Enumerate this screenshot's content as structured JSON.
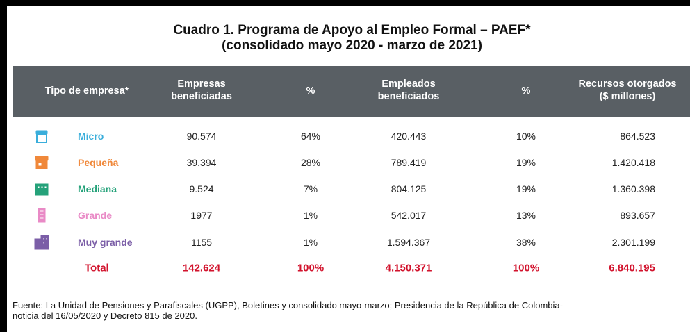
{
  "title": [
    "Cuadro 1. Programa de Apoyo al Empleo Formal – PAEF*",
    "(consolidado mayo 2020 - marzo de 2021)"
  ],
  "table": {
    "header": [
      [
        "Tipo de empresa*"
      ],
      [
        "Empresas",
        "beneficiadas"
      ],
      [
        "%"
      ],
      [
        "Empleados",
        "beneficiados"
      ],
      [
        "%"
      ],
      [
        "Recursos otorgados",
        "($ millones)"
      ]
    ],
    "rows": [
      {
        "color": "#3aaedb",
        "cells": [
          "Micro",
          "90.574",
          "64%",
          "420.443",
          "10%",
          "864.523"
        ]
      },
      {
        "color": "#f0883a",
        "cells": [
          "Pequeña",
          "39.394",
          "28%",
          "789.419",
          "19%",
          "1.420.418"
        ]
      },
      {
        "color": "#25a27a",
        "cells": [
          "Mediana",
          "9.524",
          "7%",
          "804.125",
          "19%",
          "1.360.398"
        ]
      },
      {
        "color": "#e98ac6",
        "cells": [
          "Grande",
          "1977",
          "1%",
          "542.017",
          "13%",
          "893.657"
        ]
      },
      {
        "color": "#7b5ea7",
        "cells": [
          "Muy grande",
          "1155",
          "1%",
          "1.594.367",
          "38%",
          "2.301.199"
        ]
      }
    ],
    "total": {
      "color": "#d2132d",
      "cells": [
        "Total",
        "142.624",
        "100%",
        "4.150.371",
        "100%",
        "6.840.195"
      ]
    }
  },
  "footnote": [
    "Fuente: La Unidad de Pensiones y Parafiscales (UGPP), Boletines y consolidado mayo-marzo; Presidencia de la República de Colombia-",
    "noticia del 16/05/2020 y Decreto 815 de 2020."
  ]
}
